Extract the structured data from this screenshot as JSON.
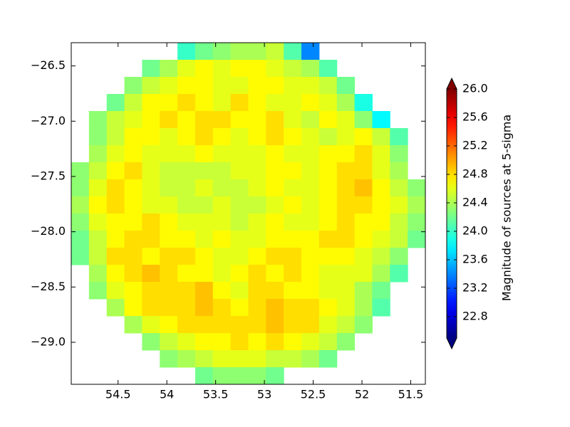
{
  "chart_data": {
    "type": "heatmap",
    "colormap": "jet",
    "xlim": [
      54.98,
      51.35
    ],
    "ylim": [
      -29.38,
      -26.29
    ],
    "xticks": [
      54.5,
      54.0,
      53.5,
      53.0,
      52.5,
      52.0,
      51.5
    ],
    "yticks": [
      {
        "value": -26.5,
        "label": "−26.5"
      },
      {
        "value": -27.0,
        "label": "−27.0"
      },
      {
        "value": -27.5,
        "label": "−27.5"
      },
      {
        "value": -28.0,
        "label": "−28.0"
      },
      {
        "value": -28.5,
        "label": "−28.5"
      },
      {
        "value": -29.0,
        "label": "−29.0"
      }
    ],
    "clim": [
      22.5,
      26.0
    ],
    "colorbar_label": "Magnitude of sources at 5-sigma",
    "cticks": [
      {
        "value": 26.0,
        "label": "26.0"
      },
      {
        "value": 25.6,
        "label": "25.6"
      },
      {
        "value": 25.2,
        "label": "25.2"
      },
      {
        "value": 24.8,
        "label": "24.8"
      },
      {
        "value": 24.4,
        "label": "24.4"
      },
      {
        "value": 24.0,
        "label": "24.0"
      },
      {
        "value": 23.6,
        "label": "23.6"
      },
      {
        "value": 23.2,
        "label": "23.2"
      },
      {
        "value": 22.8,
        "label": "22.8"
      }
    ],
    "z": [
      [
        null,
        null,
        null,
        null,
        null,
        null,
        24.0,
        24.2,
        24.3,
        24.4,
        24.4,
        24.5,
        24.1,
        23.4,
        null,
        null,
        null,
        null,
        null,
        null
      ],
      [
        null,
        null,
        null,
        null,
        24.2,
        24.4,
        24.6,
        24.7,
        24.6,
        24.7,
        24.7,
        24.6,
        24.5,
        24.4,
        24.1,
        null,
        null,
        null,
        null,
        null
      ],
      [
        null,
        null,
        null,
        24.3,
        24.5,
        24.6,
        24.7,
        24.7,
        24.6,
        24.6,
        24.7,
        24.7,
        24.6,
        24.6,
        24.5,
        24.2,
        null,
        null,
        null,
        null
      ],
      [
        null,
        null,
        24.2,
        24.5,
        24.7,
        24.7,
        24.8,
        24.7,
        24.6,
        24.8,
        24.7,
        24.6,
        24.6,
        24.7,
        24.6,
        24.4,
        23.9,
        null,
        null,
        null
      ],
      [
        null,
        24.3,
        24.5,
        24.6,
        24.7,
        24.8,
        24.7,
        24.8,
        24.8,
        24.7,
        24.7,
        24.8,
        24.6,
        24.5,
        24.7,
        24.6,
        24.3,
        23.8,
        null,
        null
      ],
      [
        null,
        24.3,
        24.5,
        24.7,
        24.7,
        24.6,
        24.7,
        24.8,
        24.7,
        24.6,
        24.7,
        24.8,
        24.7,
        24.6,
        24.5,
        24.6,
        24.7,
        24.5,
        24.1,
        null
      ],
      [
        null,
        24.4,
        24.6,
        24.7,
        24.6,
        24.6,
        24.6,
        24.7,
        24.6,
        24.6,
        24.6,
        24.7,
        24.6,
        24.6,
        24.7,
        24.7,
        24.8,
        24.6,
        24.3,
        null
      ],
      [
        24.3,
        24.5,
        24.7,
        24.8,
        24.6,
        24.5,
        24.5,
        24.5,
        24.5,
        24.6,
        24.6,
        24.7,
        24.7,
        24.6,
        24.7,
        24.8,
        24.8,
        24.6,
        24.4,
        null
      ],
      [
        24.3,
        24.6,
        24.8,
        24.7,
        24.6,
        24.5,
        24.5,
        24.6,
        24.5,
        24.5,
        24.6,
        24.7,
        24.6,
        24.6,
        24.7,
        24.8,
        24.9,
        24.7,
        24.5,
        24.3
      ],
      [
        24.4,
        24.7,
        24.8,
        24.7,
        24.6,
        24.6,
        24.5,
        24.5,
        24.6,
        24.5,
        24.5,
        24.6,
        24.7,
        24.6,
        24.7,
        24.8,
        24.8,
        24.7,
        24.6,
        24.4
      ],
      [
        24.3,
        24.6,
        24.7,
        24.7,
        24.8,
        24.7,
        24.6,
        24.6,
        24.6,
        24.5,
        24.6,
        24.7,
        24.6,
        24.6,
        24.7,
        24.8,
        24.7,
        24.7,
        24.5,
        24.3
      ],
      [
        24.2,
        24.5,
        24.7,
        24.8,
        24.8,
        24.7,
        24.7,
        24.6,
        24.7,
        24.6,
        24.6,
        24.7,
        24.7,
        24.7,
        24.8,
        24.8,
        24.7,
        24.6,
        24.5,
        24.2
      ],
      [
        24.2,
        24.5,
        24.8,
        24.8,
        24.7,
        24.8,
        24.8,
        24.7,
        24.6,
        24.6,
        24.7,
        24.8,
        24.8,
        24.7,
        24.7,
        24.7,
        24.6,
        24.5,
        24.3,
        null
      ],
      [
        null,
        24.4,
        24.7,
        24.8,
        24.9,
        24.8,
        24.7,
        24.7,
        24.6,
        24.7,
        24.8,
        24.7,
        24.8,
        24.7,
        24.6,
        24.6,
        24.6,
        24.4,
        24.1,
        null
      ],
      [
        null,
        24.3,
        24.6,
        24.7,
        24.8,
        24.8,
        24.8,
        24.9,
        24.7,
        24.6,
        24.8,
        24.8,
        24.7,
        24.7,
        24.6,
        24.6,
        24.4,
        24.2,
        null,
        null
      ],
      [
        null,
        null,
        24.4,
        24.7,
        24.8,
        24.8,
        24.8,
        24.9,
        24.8,
        24.7,
        24.8,
        24.9,
        24.8,
        24.8,
        24.7,
        24.6,
        24.4,
        24.1,
        null,
        null
      ],
      [
        null,
        null,
        null,
        24.4,
        24.6,
        24.7,
        24.8,
        24.8,
        24.8,
        24.8,
        24.8,
        24.9,
        24.8,
        24.8,
        24.6,
        24.5,
        24.3,
        null,
        null,
        null
      ],
      [
        null,
        null,
        null,
        null,
        24.3,
        24.5,
        24.6,
        24.7,
        24.7,
        24.8,
        24.7,
        24.8,
        24.7,
        24.6,
        24.5,
        24.3,
        null,
        null,
        null,
        null
      ],
      [
        null,
        null,
        null,
        null,
        null,
        24.3,
        24.4,
        24.5,
        24.6,
        24.6,
        24.6,
        24.5,
        24.5,
        24.4,
        24.2,
        null,
        null,
        null,
        null,
        null
      ],
      [
        null,
        null,
        null,
        null,
        null,
        null,
        null,
        24.2,
        24.3,
        24.3,
        24.3,
        24.2,
        null,
        null,
        null,
        null,
        null,
        null,
        null,
        null
      ]
    ]
  }
}
